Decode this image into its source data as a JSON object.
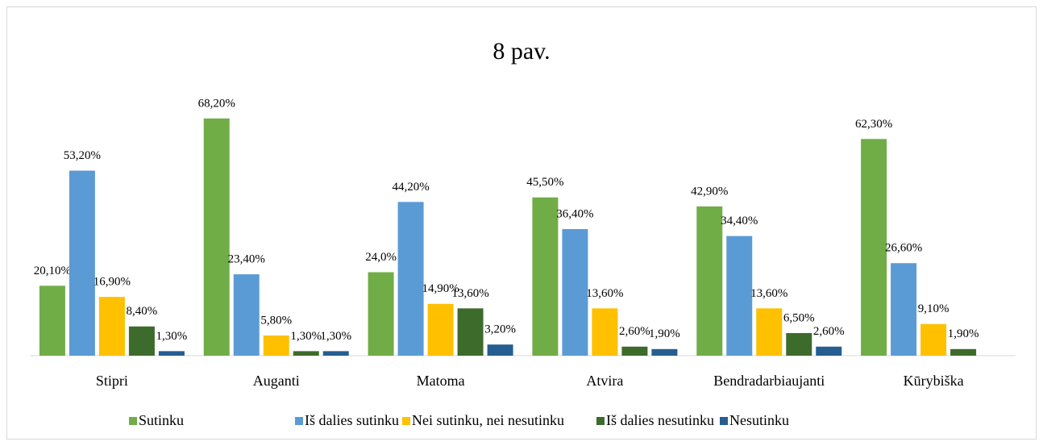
{
  "chart_data": {
    "type": "bar",
    "title": "8 pav.",
    "categories": [
      "Stipri",
      "Auganti",
      "Matoma",
      "Atvira",
      "Bendradarbiaujanti",
      "Kūrybiška"
    ],
    "series": [
      {
        "name": "Sutinku",
        "color": "#70ad47",
        "values": [
          20.1,
          68.2,
          24.0,
          45.5,
          42.9,
          62.3
        ],
        "value_labels": [
          "20,10%",
          "68,20%",
          "24,0%",
          "45,50%",
          "42,90%",
          "62,30%"
        ]
      },
      {
        "name": "Iš dalies sutinku",
        "color": "#5b9bd5",
        "values": [
          53.2,
          23.4,
          44.2,
          36.4,
          34.4,
          26.6
        ],
        "value_labels": [
          "53,20%",
          "23,40%",
          "44,20%",
          "36,40%",
          "34,40%",
          "26,60%"
        ]
      },
      {
        "name": "Nei sutinku, nei nesutinku",
        "color": "#ffc000",
        "values": [
          16.9,
          5.8,
          14.9,
          13.6,
          13.6,
          9.1
        ],
        "value_labels": [
          "16,90%",
          "5,80%",
          "14,90%",
          "13,60%",
          "13,60%",
          "9,10%"
        ]
      },
      {
        "name": "Iš dalies nesutinku",
        "color": "#3d6b2b",
        "values": [
          8.4,
          1.3,
          13.6,
          2.6,
          6.5,
          1.9
        ],
        "value_labels": [
          "8,40%",
          "1,30%",
          "13,60%",
          "2,60%",
          "6,50%",
          "1,90%"
        ]
      },
      {
        "name": "Nesutinku",
        "color": "#255e91",
        "values": [
          1.3,
          1.3,
          3.2,
          1.9,
          2.6,
          null
        ],
        "value_labels": [
          "1,30%",
          "1,30%",
          "3,20%",
          "1,90%",
          "2,60%",
          null
        ]
      }
    ],
    "ylim": [
      0,
      80
    ],
    "legend": "bottom"
  }
}
